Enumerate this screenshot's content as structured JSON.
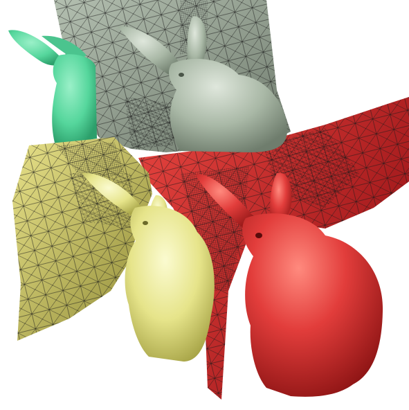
{
  "scene": {
    "background": "#ffffff",
    "bunnies": [
      {
        "name": "green-bunny",
        "color": "#55d69c"
      },
      {
        "name": "gray-bunny",
        "color": "#a9b8a6"
      },
      {
        "name": "yellow-bunny",
        "color": "#e6e48a"
      },
      {
        "name": "red-bunny",
        "color": "#d83434"
      }
    ],
    "cut_planes": [
      {
        "name": "gray-mesh-plane",
        "color": "#8f9c8d"
      },
      {
        "name": "yellow-mesh-plane",
        "color": "#c4bf62"
      },
      {
        "name": "red-mesh-plane",
        "color": "#c2262c"
      }
    ],
    "wireframe_color": "#1a1a1a"
  }
}
